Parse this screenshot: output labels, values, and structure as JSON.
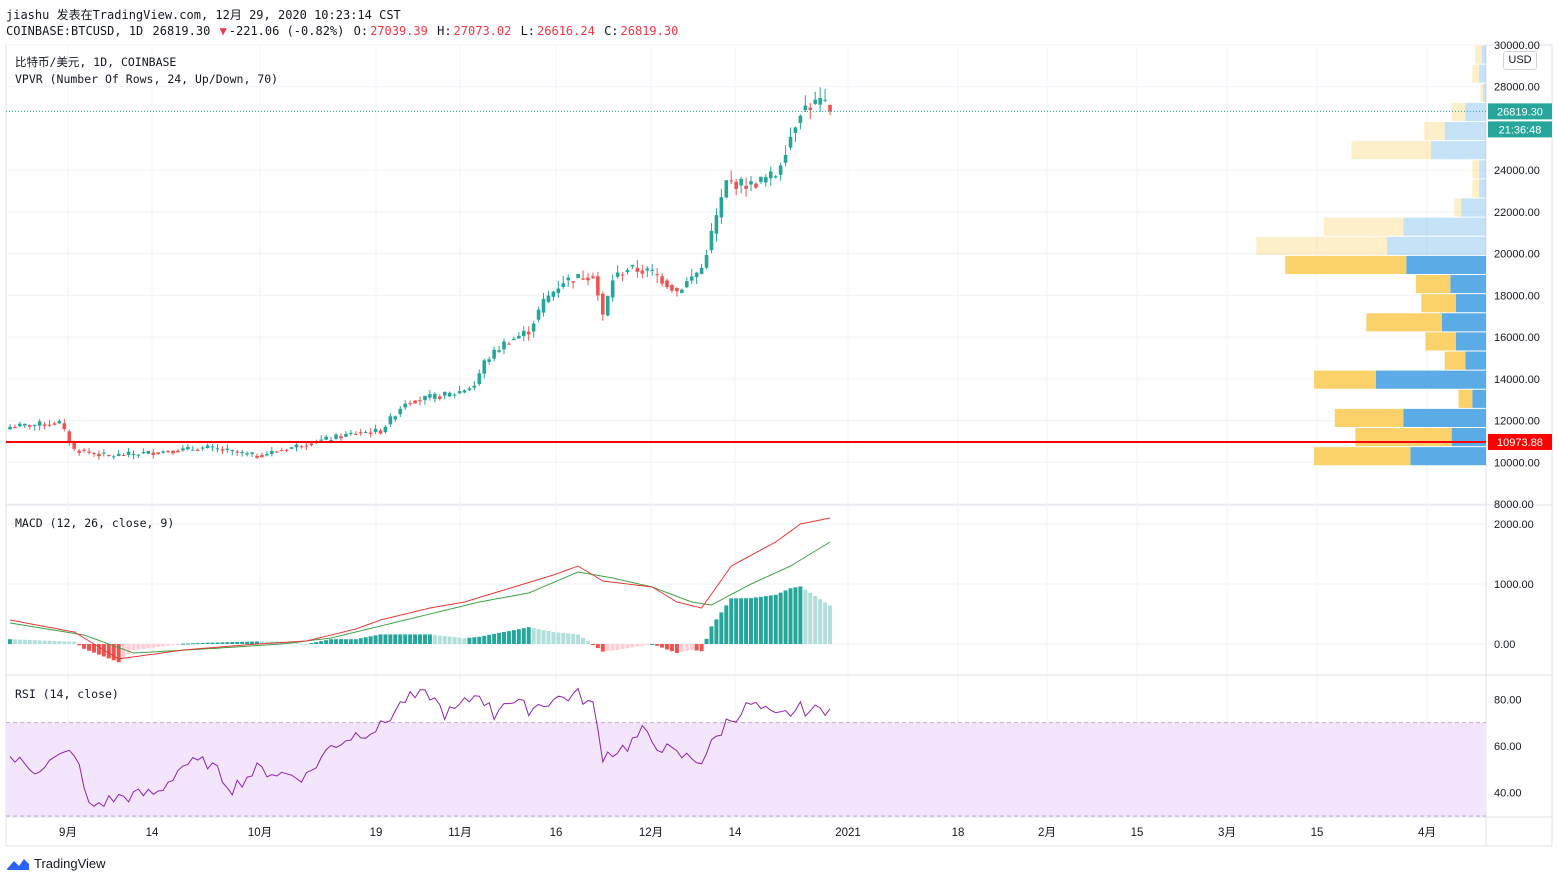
{
  "header": {
    "line1": "jiashu 发表在TradingView.com, 12月 29, 2020 10:23:14 CST",
    "symbol": "COINBASE:BTCUSD, 1D",
    "last": "26819.30",
    "arrow": "▼",
    "change": "-221.06 (-0.82%)",
    "o_label": "O:",
    "o": "27039.39",
    "h_label": "H:",
    "h": "27073.02",
    "l_label": "L:",
    "l": "26616.24",
    "c_label": "C:",
    "c": "26819.30"
  },
  "pane_labels": {
    "main_title": "比特币/美元, 1D, COINBASE",
    "vpvr": "VPVR (Number Of Rows, 24, Up/Down, 70)",
    "macd": "MACD (12, 26, close, 9)",
    "rsi": "RSI (14, close)"
  },
  "currency": "USD",
  "footer": {
    "brand": "TradingView",
    "logo_icon": "tradingview-logo-icon"
  },
  "colors": {
    "up": "#26a69a",
    "down": "#ef5350",
    "hline": "#ff0000",
    "vp_up": "#5aabe6",
    "vp_down": "#fbd16a",
    "macd": "#e53935",
    "signal": "#43a047",
    "rsi": "#8e24aa"
  },
  "chart_data": [
    {
      "type": "candlestick",
      "title": "比特币/美元, 1D, COINBASE",
      "ylim": [
        8000,
        30000
      ],
      "y_ticks": [
        "8000.00",
        "10000.00",
        "12000.00",
        "14000.00",
        "16000.00",
        "18000.00",
        "20000.00",
        "22000.00",
        "24000.00",
        "28000.00",
        "30000.00"
      ],
      "x_ticks": [
        "9月",
        "14",
        "10月",
        "19",
        "11月",
        "16",
        "12月",
        "14",
        "2021",
        "18",
        "2月",
        "15",
        "3月",
        "15",
        "4月"
      ],
      "last_price_label": "26819.30",
      "countdown_label": "21:36:48",
      "horizontal_line": {
        "value": 10973.88,
        "label": "10973.88"
      },
      "closes_anchor": [
        [
          0,
          11700
        ],
        [
          10,
          11900
        ],
        [
          13,
          10600
        ],
        [
          20,
          10300
        ],
        [
          30,
          10500
        ],
        [
          40,
          10700
        ],
        [
          50,
          10300
        ],
        [
          60,
          10900
        ],
        [
          70,
          11400
        ],
        [
          75,
          11500
        ],
        [
          80,
          12900
        ],
        [
          90,
          13300
        ],
        [
          94,
          13700
        ],
        [
          96,
          14800
        ],
        [
          100,
          15700
        ],
        [
          105,
          16300
        ],
        [
          108,
          17700
        ],
        [
          112,
          18700
        ],
        [
          118,
          19000
        ],
        [
          120,
          17000
        ],
        [
          122,
          18800
        ],
        [
          125,
          19300
        ],
        [
          130,
          19100
        ],
        [
          135,
          18200
        ],
        [
          140,
          19300
        ],
        [
          145,
          23400
        ],
        [
          150,
          23300
        ],
        [
          155,
          23800
        ],
        [
          160,
          26900
        ],
        [
          164,
          27300
        ],
        [
          166,
          26819
        ]
      ],
      "volume_profile": {
        "note": "rows 24 from 8000 to 30000",
        "up": [
          0,
          0,
          0.55,
          0.25,
          0.6,
          0.1,
          0.8,
          0.15,
          0.22,
          0.32,
          0.22,
          0.26,
          0.58,
          0.72,
          0.6,
          0.18,
          0.05,
          0.05,
          0.4,
          0.3,
          0.15,
          0.02,
          0.05,
          0.03
        ],
        "down": [
          0,
          0,
          0.7,
          0.7,
          0.5,
          0.1,
          0.45,
          0.15,
          0.22,
          0.55,
          0.25,
          0.25,
          0.88,
          0.95,
          0.58,
          0.05,
          0.05,
          0.05,
          0.58,
          0.15,
          0.1,
          0.02,
          0.05,
          0.05
        ]
      }
    },
    {
      "type": "line",
      "title": "MACD (12, 26, close, 9)",
      "ylim": [
        -500,
        2300
      ],
      "y_ticks": [
        "0.00",
        "1000.00",
        "2000.00"
      ],
      "macd_anchor": [
        [
          0,
          400
        ],
        [
          13,
          200
        ],
        [
          22,
          -250
        ],
        [
          35,
          -100
        ],
        [
          50,
          0
        ],
        [
          60,
          50
        ],
        [
          70,
          250
        ],
        [
          75,
          400
        ],
        [
          85,
          600
        ],
        [
          92,
          700
        ],
        [
          100,
          900
        ],
        [
          110,
          1150
        ],
        [
          115,
          1300
        ],
        [
          120,
          1050
        ],
        [
          130,
          950
        ],
        [
          135,
          700
        ],
        [
          140,
          600
        ],
        [
          146,
          1300
        ],
        [
          155,
          1700
        ],
        [
          160,
          2000
        ],
        [
          166,
          2100
        ]
      ],
      "signal_anchor": [
        [
          0,
          350
        ],
        [
          15,
          150
        ],
        [
          25,
          -150
        ],
        [
          40,
          -80
        ],
        [
          55,
          0
        ],
        [
          65,
          100
        ],
        [
          75,
          300
        ],
        [
          85,
          500
        ],
        [
          95,
          700
        ],
        [
          105,
          850
        ],
        [
          115,
          1200
        ],
        [
          122,
          1100
        ],
        [
          130,
          950
        ],
        [
          138,
          700
        ],
        [
          142,
          650
        ],
        [
          150,
          1000
        ],
        [
          158,
          1300
        ],
        [
          166,
          1700
        ]
      ]
    },
    {
      "type": "line",
      "title": "RSI (14, close)",
      "ylim": [
        30,
        90
      ],
      "y_ticks": [
        "40.00",
        "60.00",
        "80.00"
      ],
      "band": [
        30,
        70
      ],
      "rsi_anchor": [
        [
          0,
          55
        ],
        [
          5,
          50
        ],
        [
          13,
          58
        ],
        [
          16,
          34
        ],
        [
          22,
          38
        ],
        [
          30,
          40
        ],
        [
          35,
          52
        ],
        [
          40,
          53
        ],
        [
          45,
          42
        ],
        [
          50,
          50
        ],
        [
          55,
          48
        ],
        [
          60,
          47
        ],
        [
          65,
          60
        ],
        [
          70,
          65
        ],
        [
          75,
          68
        ],
        [
          80,
          80
        ],
        [
          85,
          82
        ],
        [
          88,
          74
        ],
        [
          90,
          75
        ],
        [
          95,
          83
        ],
        [
          98,
          73
        ],
        [
          100,
          80
        ],
        [
          105,
          76
        ],
        [
          110,
          80
        ],
        [
          115,
          82
        ],
        [
          118,
          77
        ],
        [
          120,
          56
        ],
        [
          125,
          60
        ],
        [
          128,
          66
        ],
        [
          130,
          62
        ],
        [
          135,
          56
        ],
        [
          140,
          54
        ],
        [
          145,
          70
        ],
        [
          150,
          78
        ],
        [
          155,
          72
        ],
        [
          160,
          76
        ],
        [
          163,
          75
        ],
        [
          166,
          76
        ]
      ]
    }
  ]
}
